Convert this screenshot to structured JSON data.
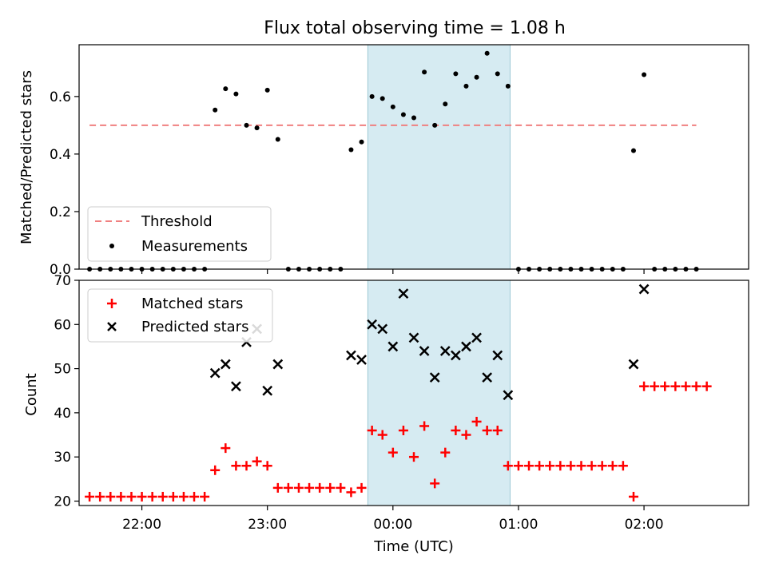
{
  "title": "Flux total observing time = 1.08 h",
  "colors": {
    "threshold": "#f08080",
    "measurement": "#000000",
    "matched": "#ff0000",
    "predicted": "#000000",
    "span": "#add8e6"
  },
  "chart_data": [
    {
      "type": "scatter",
      "ylabel": "Matched/Predicted stars",
      "ylim": [
        0,
        0.78
      ],
      "yticks": [
        0.0,
        0.2,
        0.4,
        0.6
      ],
      "ytick_labels": [
        "0.0",
        "0.2",
        "0.4",
        "0.6"
      ],
      "shaded_span": [
        "23:48",
        "00:56"
      ],
      "legend": {
        "position": "lower-left",
        "entries": [
          "Threshold",
          "Measurements"
        ]
      },
      "threshold": {
        "name": "Threshold",
        "value": 0.5,
        "x_range": [
          "21:35",
          "02:25"
        ]
      },
      "series": [
        {
          "name": "Measurements",
          "points": [
            [
              "21:35",
              0
            ],
            [
              "21:40",
              0
            ],
            [
              "21:45",
              0
            ],
            [
              "21:50",
              0
            ],
            [
              "21:55",
              0
            ],
            [
              "22:00",
              0
            ],
            [
              "22:05",
              0
            ],
            [
              "22:10",
              0
            ],
            [
              "22:15",
              0
            ],
            [
              "22:20",
              0
            ],
            [
              "22:25",
              0
            ],
            [
              "22:30",
              0
            ],
            [
              "22:35",
              0.553
            ],
            [
              "22:40",
              0.627
            ],
            [
              "22:45",
              0.609
            ],
            [
              "22:50",
              0.5
            ],
            [
              "22:55",
              0.491
            ],
            [
              "23:00",
              0.622
            ],
            [
              "23:05",
              0.451
            ],
            [
              "23:10",
              0
            ],
            [
              "23:15",
              0
            ],
            [
              "23:20",
              0
            ],
            [
              "23:25",
              0
            ],
            [
              "23:30",
              0
            ],
            [
              "23:35",
              0
            ],
            [
              "23:40",
              0.415
            ],
            [
              "23:45",
              0.442
            ],
            [
              "23:50",
              0.6
            ],
            [
              "23:55",
              0.593
            ],
            [
              "00:00",
              0.564
            ],
            [
              "00:05",
              0.537
            ],
            [
              "00:10",
              0.526
            ],
            [
              "00:15",
              0.685
            ],
            [
              "00:20",
              0.5
            ],
            [
              "00:25",
              0.574
            ],
            [
              "00:30",
              0.679
            ],
            [
              "00:35",
              0.636
            ],
            [
              "00:40",
              0.667
            ],
            [
              "00:45",
              0.75
            ],
            [
              "00:50",
              0.679
            ],
            [
              "00:55",
              0.636
            ],
            [
              "01:00",
              0
            ],
            [
              "01:05",
              0
            ],
            [
              "01:10",
              0
            ],
            [
              "01:15",
              0
            ],
            [
              "01:20",
              0
            ],
            [
              "01:25",
              0
            ],
            [
              "01:30",
              0
            ],
            [
              "01:35",
              0
            ],
            [
              "01:40",
              0
            ],
            [
              "01:45",
              0
            ],
            [
              "01:50",
              0
            ],
            [
              "01:55",
              0.412
            ],
            [
              "02:00",
              0.676
            ],
            [
              "02:05",
              0
            ],
            [
              "02:10",
              0
            ],
            [
              "02:15",
              0
            ],
            [
              "02:20",
              0
            ],
            [
              "02:25",
              0
            ]
          ]
        }
      ]
    },
    {
      "type": "scatter",
      "ylabel": "Count",
      "xlabel": "Time (UTC)",
      "ylim": [
        19,
        70
      ],
      "yticks": [
        20,
        30,
        40,
        50,
        60,
        70
      ],
      "ytick_labels": [
        "20",
        "30",
        "40",
        "50",
        "60",
        "70"
      ],
      "xticks": [
        "22:00",
        "23:00",
        "00:00",
        "01:00",
        "02:00"
      ],
      "xtick_labels": [
        "22:00",
        "23:00",
        "00:00",
        "01:00",
        "02:00"
      ],
      "shaded_span": [
        "23:48",
        "00:56"
      ],
      "legend": {
        "position": "upper-left",
        "entries": [
          "Matched stars",
          "Predicted stars"
        ]
      },
      "series": [
        {
          "name": "Matched stars",
          "marker": "plus",
          "points": [
            [
              "21:35",
              21
            ],
            [
              "21:40",
              21
            ],
            [
              "21:45",
              21
            ],
            [
              "21:50",
              21
            ],
            [
              "21:55",
              21
            ],
            [
              "22:00",
              21
            ],
            [
              "22:05",
              21
            ],
            [
              "22:10",
              21
            ],
            [
              "22:15",
              21
            ],
            [
              "22:20",
              21
            ],
            [
              "22:25",
              21
            ],
            [
              "22:30",
              21
            ],
            [
              "22:35",
              27
            ],
            [
              "22:40",
              32
            ],
            [
              "22:45",
              28
            ],
            [
              "22:50",
              28
            ],
            [
              "22:55",
              29
            ],
            [
              "23:00",
              28
            ],
            [
              "23:05",
              23
            ],
            [
              "23:10",
              23
            ],
            [
              "23:15",
              23
            ],
            [
              "23:20",
              23
            ],
            [
              "23:25",
              23
            ],
            [
              "23:30",
              23
            ],
            [
              "23:35",
              23
            ],
            [
              "23:40",
              22
            ],
            [
              "23:45",
              23
            ],
            [
              "23:50",
              36
            ],
            [
              "23:55",
              35
            ],
            [
              "00:00",
              31
            ],
            [
              "00:05",
              36
            ],
            [
              "00:10",
              30
            ],
            [
              "00:15",
              37
            ],
            [
              "00:20",
              24
            ],
            [
              "00:25",
              31
            ],
            [
              "00:30",
              36
            ],
            [
              "00:35",
              35
            ],
            [
              "00:40",
              38
            ],
            [
              "00:45",
              36
            ],
            [
              "00:50",
              36
            ],
            [
              "00:55",
              28
            ],
            [
              "01:00",
              28
            ],
            [
              "01:05",
              28
            ],
            [
              "01:10",
              28
            ],
            [
              "01:15",
              28
            ],
            [
              "01:20",
              28
            ],
            [
              "01:25",
              28
            ],
            [
              "01:30",
              28
            ],
            [
              "01:35",
              28
            ],
            [
              "01:40",
              28
            ],
            [
              "01:45",
              28
            ],
            [
              "01:50",
              28
            ],
            [
              "01:55",
              21
            ],
            [
              "02:00",
              46
            ],
            [
              "02:05",
              46
            ],
            [
              "02:10",
              46
            ],
            [
              "02:15",
              46
            ],
            [
              "02:20",
              46
            ],
            [
              "02:25",
              46
            ],
            [
              "02:30",
              46
            ]
          ]
        },
        {
          "name": "Predicted stars",
          "marker": "x",
          "points": [
            [
              "22:35",
              49
            ],
            [
              "22:40",
              51
            ],
            [
              "22:45",
              46
            ],
            [
              "22:50",
              56
            ],
            [
              "22:55",
              59
            ],
            [
              "23:00",
              45
            ],
            [
              "23:05",
              51
            ],
            [
              "23:40",
              53
            ],
            [
              "23:45",
              52
            ],
            [
              "23:50",
              60
            ],
            [
              "23:55",
              59
            ],
            [
              "00:00",
              55
            ],
            [
              "00:05",
              67
            ],
            [
              "00:10",
              57
            ],
            [
              "00:15",
              54
            ],
            [
              "00:20",
              48
            ],
            [
              "00:25",
              54
            ],
            [
              "00:30",
              53
            ],
            [
              "00:35",
              55
            ],
            [
              "00:40",
              57
            ],
            [
              "00:45",
              48
            ],
            [
              "00:50",
              53
            ],
            [
              "00:55",
              44
            ],
            [
              "01:55",
              51
            ],
            [
              "02:00",
              68
            ]
          ]
        }
      ]
    }
  ]
}
